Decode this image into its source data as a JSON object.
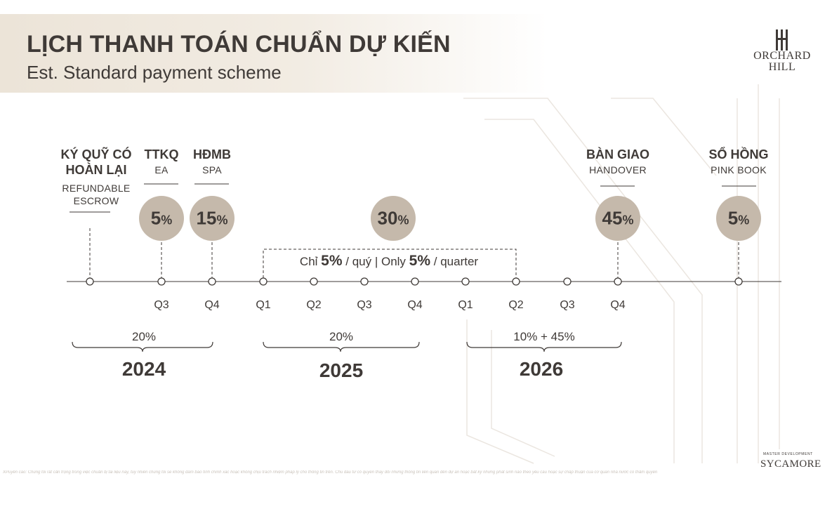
{
  "header": {
    "title": "LỊCH THANH TOÁN CHUẨN DỰ KIẾN",
    "subtitle": "Est. Standard payment scheme"
  },
  "brand": {
    "logo_line1": "ORCHARD",
    "logo_line2": "HILL",
    "logo_icon": "orchard-hill-monogram",
    "sponsor_caption": "MASTER DEVELOPMENT",
    "sponsor_name": "SYCAMORE"
  },
  "milestones": [
    {
      "title": "KÝ QUỸ CÓ\nHOÀN LẠI",
      "subtitle": "REFUNDABLE\nESCROW",
      "percent_num": "",
      "percent_sign": ""
    },
    {
      "title": "TTKQ",
      "subtitle": "EA",
      "percent_num": "5",
      "percent_sign": "%"
    },
    {
      "title": "HĐMB",
      "subtitle": "SPA",
      "percent_num": "15",
      "percent_sign": "%"
    },
    {
      "title": "",
      "subtitle": "",
      "percent_num": "30",
      "percent_sign": "%"
    },
    {
      "title": "BÀN GIAO",
      "subtitle": "HANDOVER",
      "percent_num": "45",
      "percent_sign": "%"
    },
    {
      "title": "SỔ HỒNG",
      "subtitle": "PINK BOOK",
      "percent_num": "5",
      "percent_sign": "%"
    }
  ],
  "installment_note": {
    "prefix": "Chỉ",
    "value1": "5%",
    "mid": "/ quý | Only",
    "value2": "5%",
    "suffix": "/ quarter"
  },
  "quarters": [
    "Q3",
    "Q4",
    "Q1",
    "Q2",
    "Q3",
    "Q4",
    "Q1",
    "Q2",
    "Q3",
    "Q4"
  ],
  "years": [
    {
      "percent": "20%",
      "year": "2024"
    },
    {
      "percent": "20%",
      "year": "2025"
    },
    {
      "percent": "10% + 45%",
      "year": "2026"
    }
  ],
  "colors": {
    "text": "#3f3a37",
    "circle_fill": "#c5b9ab",
    "header_band": "#ece4d8",
    "line": "#3f3a37"
  },
  "footer": {
    "disclaimer": "XPuyến cáo: Chúng tôi rất cẩn trọng trong việc chuẩn bị tài liệu này, tuy nhiên chúng tôi sẽ không đảm bảo tính chính xác hoặc không chịu trách nhiệm pháp lý cho thông tin trên. Chủ đầu tư có quyền thay đổi những thông tin liên quan đến dự án hoặc bất kỳ những phát sinh nào theo yêu cầu hoặc sự chấp thuận của cơ quan nhà nước có thẩm quyền"
  }
}
